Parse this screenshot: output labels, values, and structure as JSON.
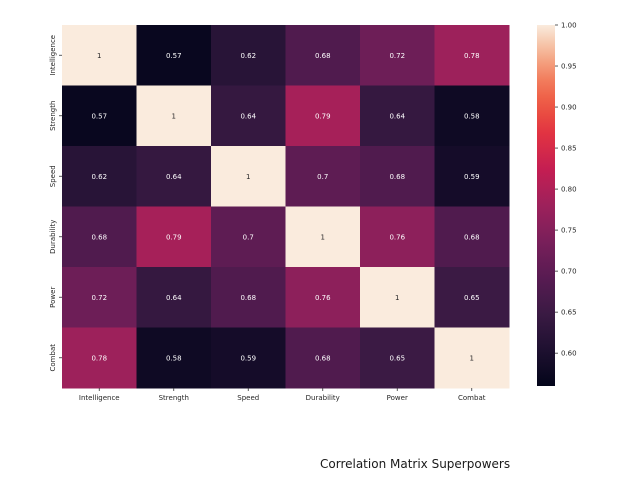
{
  "caption": "Correlation Matrix Superpowers",
  "chart_data": {
    "type": "heatmap",
    "title": "",
    "xlabel": "",
    "ylabel": "",
    "x_categories": [
      "Intelligence",
      "Strength",
      "Speed",
      "Durability",
      "Power",
      "Combat"
    ],
    "y_categories": [
      "Intelligence",
      "Strength",
      "Speed",
      "Durability",
      "Power",
      "Combat"
    ],
    "values": [
      [
        1,
        0.57,
        0.62,
        0.68,
        0.72,
        0.78
      ],
      [
        0.57,
        1,
        0.64,
        0.79,
        0.64,
        0.58
      ],
      [
        0.62,
        0.64,
        1,
        0.7,
        0.68,
        0.59
      ],
      [
        0.68,
        0.79,
        0.7,
        1,
        0.76,
        0.68
      ],
      [
        0.72,
        0.64,
        0.68,
        0.76,
        1,
        0.65
      ],
      [
        0.78,
        0.58,
        0.59,
        0.68,
        0.65,
        1
      ]
    ],
    "colorbar": {
      "range": [
        0.56,
        1.0
      ],
      "ticks": [
        "0.60",
        "0.65",
        "0.70",
        "0.75",
        "0.80",
        "0.85",
        "0.90",
        "0.95",
        "1.00"
      ],
      "colormap": "rocket"
    },
    "annotations": true,
    "grid": false
  }
}
